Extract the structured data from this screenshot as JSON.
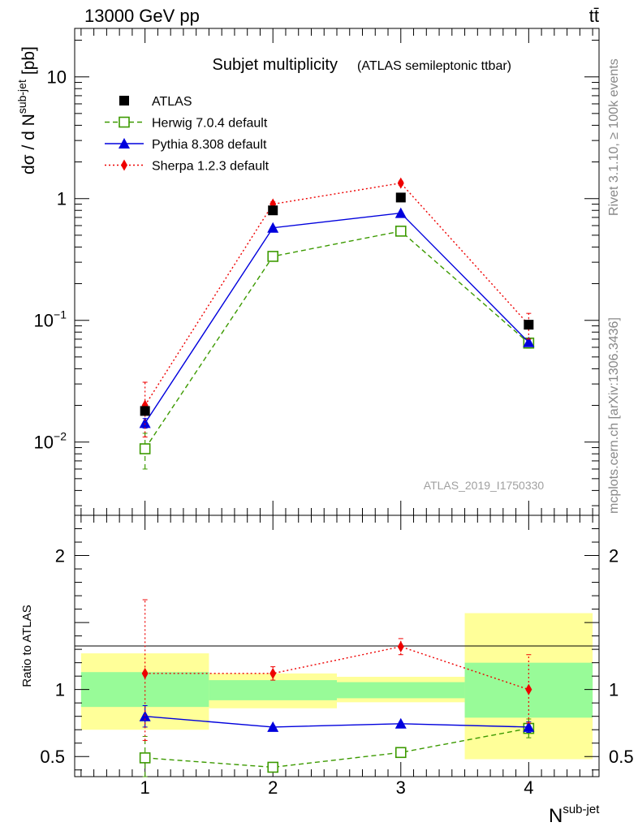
{
  "header": {
    "left": "13000 GeV pp",
    "right": "tt̄"
  },
  "side_labels": {
    "rivet": "Rivet 3.1.10, ≥ 100k events",
    "source": "mcplots.cern.ch [arXiv:1306.3436]"
  },
  "watermark": "ATLAS_2019_I1750330",
  "chart_data": [
    {
      "type": "scatter",
      "title": "Subjet multiplicity",
      "subtitle": "(ATLAS semileptonic ttbar)",
      "ylabel": "dσ / d N",
      "ylabel_sup": "sub-jet",
      "ylabel_unit": "[pb]",
      "yscale": "log",
      "ylim": [
        0.0025,
        25
      ],
      "xlim": [
        0.45,
        4.55
      ],
      "y_tick_labels": [
        {
          "value": 0.01,
          "base": "10",
          "exp": "−2"
        },
        {
          "value": 0.1,
          "base": "10",
          "exp": "−1"
        },
        {
          "value": 1,
          "base": "1",
          "exp": ""
        },
        {
          "value": 10,
          "base": "10",
          "exp": ""
        }
      ],
      "legend_position": "top-left",
      "x": [
        1,
        2,
        3,
        4
      ],
      "series": [
        {
          "name": "ATLAS",
          "color": "#000000",
          "marker": "square",
          "line": "none",
          "values": [
            0.018,
            0.8,
            1.02,
            0.092
          ]
        },
        {
          "name": "Herwig 7.0.4 default",
          "color": "#3c9a00",
          "marker": "open-square",
          "line": "dashed",
          "values": [
            0.0088,
            0.335,
            0.54,
            0.065
          ],
          "err_low": [
            0.0028,
            0.01,
            0.02,
            0.006
          ],
          "err_high": [
            0.003,
            0.01,
            0.02,
            0.006
          ]
        },
        {
          "name": "Pythia 8.308 default",
          "color": "#0000dd",
          "marker": "triangle",
          "line": "solid",
          "values": [
            0.0143,
            0.575,
            0.76,
            0.066
          ],
          "err_low": [
            0.0013,
            0.01,
            0.01,
            0.004
          ],
          "err_high": [
            0.0013,
            0.01,
            0.01,
            0.004
          ]
        },
        {
          "name": "Sherpa 1.2.3 default",
          "color": "#ee0000",
          "marker": "diamond",
          "line": "dotted",
          "values": [
            0.02,
            0.9,
            1.34,
            0.092
          ],
          "err_low": [
            0.009,
            0.04,
            0.05,
            0.022
          ],
          "err_high": [
            0.011,
            0.04,
            0.05,
            0.022
          ]
        }
      ]
    },
    {
      "type": "scatter",
      "title": "",
      "ylabel": "Ratio to ATLAS",
      "xlabel": "N",
      "xlabel_sup": "sub-jet",
      "ylim": [
        0.35,
        2.3
      ],
      "xlim": [
        0.45,
        4.55
      ],
      "x_tick_labels": [
        "1",
        "2",
        "3",
        "4"
      ],
      "y_tick_labels": [
        {
          "value": 0.5,
          "label": "0.5"
        },
        {
          "value": 1,
          "label": "1"
        },
        {
          "value": 2,
          "label": "2"
        }
      ],
      "bands": [
        {
          "x0": 0.5,
          "x1": 1.5,
          "inner": [
            0.87,
            1.13
          ],
          "outer": [
            0.7,
            1.27
          ]
        },
        {
          "x0": 1.5,
          "x1": 2.5,
          "inner": [
            0.92,
            1.07
          ],
          "outer": [
            0.86,
            1.12
          ]
        },
        {
          "x0": 2.5,
          "x1": 3.5,
          "inner": [
            0.935,
            1.055
          ],
          "outer": [
            0.905,
            1.095
          ]
        },
        {
          "x0": 3.5,
          "x1": 4.5,
          "inner": [
            0.79,
            1.2
          ],
          "outer": [
            0.48,
            1.57
          ]
        }
      ],
      "band_colors": {
        "inner": "#98fb98",
        "outer": "#ffff99"
      },
      "reference": 1,
      "x": [
        1,
        2,
        3,
        4
      ],
      "series": [
        {
          "name": "Herwig 7.0.4 default",
          "color": "#3c9a00",
          "marker": "open-square",
          "line": "dashed",
          "values": [
            0.49,
            0.42,
            0.53,
            0.71
          ],
          "err_low": [
            0.15,
            0.02,
            0.02,
            0.07
          ],
          "err_high": [
            0.16,
            0.02,
            0.02,
            0.07
          ]
        },
        {
          "name": "Pythia 8.308 default",
          "color": "#0000dd",
          "marker": "triangle",
          "line": "solid",
          "values": [
            0.8,
            0.72,
            0.745,
            0.72
          ],
          "err_low": [
            0.08,
            0.01,
            0.01,
            0.04
          ],
          "err_high": [
            0.08,
            0.01,
            0.01,
            0.04
          ]
        },
        {
          "name": "Sherpa 1.2.3 default",
          "color": "#ee0000",
          "marker": "diamond",
          "line": "dotted",
          "values": [
            1.12,
            1.12,
            1.32,
            1.0
          ],
          "err_low": [
            0.5,
            0.05,
            0.06,
            0.25
          ],
          "err_high": [
            0.55,
            0.05,
            0.06,
            0.26
          ]
        }
      ]
    }
  ]
}
